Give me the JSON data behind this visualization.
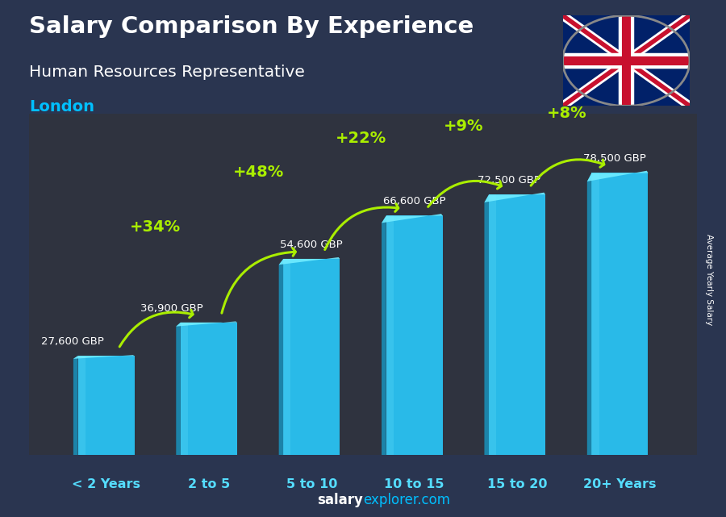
{
  "title": "Salary Comparison By Experience",
  "subtitle": "Human Resources Representative",
  "city": "London",
  "ylabel_right": "Average Yearly Salary",
  "categories": [
    "< 2 Years",
    "2 to 5",
    "5 to 10",
    "10 to 15",
    "15 to 20",
    "20+ Years"
  ],
  "values": [
    27600,
    36900,
    54600,
    66600,
    72500,
    78500
  ],
  "labels": [
    "27,600 GBP",
    "36,900 GBP",
    "54,600 GBP",
    "66,600 GBP",
    "72,500 GBP",
    "78,500 GBP"
  ],
  "pct_labels": [
    "+34%",
    "+48%",
    "+22%",
    "+9%",
    "+8%"
  ],
  "bar_color": "#29C5F6",
  "bar_color_dark": "#1A8FB8",
  "bar_color_light": "#6DEAFF",
  "city_color": "#00BFFF",
  "pct_color": "#AAEE00",
  "cat_color": "#55DDFF",
  "ylim": [
    0,
    95000
  ],
  "figsize": [
    9.0,
    6.41
  ],
  "dpi": 100
}
